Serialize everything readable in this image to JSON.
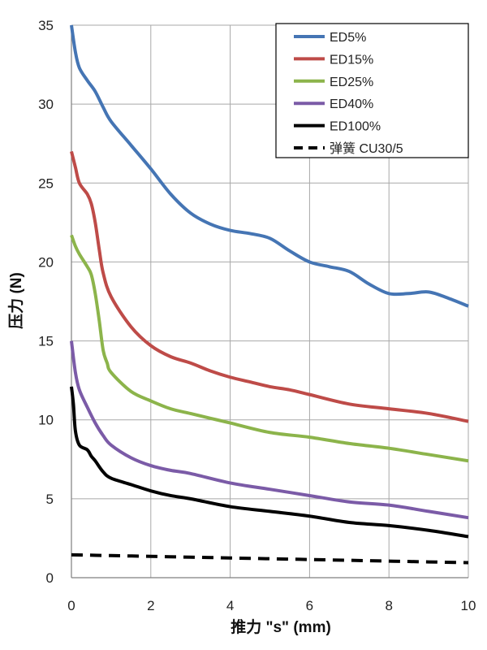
{
  "chart_data": {
    "type": "line",
    "title": "",
    "xlabel": "推力 \"s\" (mm)",
    "ylabel": "压力 (N)",
    "xlim": [
      0,
      10
    ],
    "ylim": [
      0,
      35
    ],
    "x_ticks": [
      "0",
      "2",
      "4",
      "6",
      "8",
      "10"
    ],
    "y_ticks": [
      "0",
      "5",
      "10",
      "15",
      "20",
      "25",
      "30",
      "35"
    ],
    "grid": "vertical",
    "legend_position": "top-right",
    "series": [
      {
        "name": "ED5%",
        "color": "#4575b4",
        "dash": "solid",
        "points": [
          [
            0,
            35
          ],
          [
            0.1,
            33.3
          ],
          [
            0.2,
            32.3
          ],
          [
            0.4,
            31.5
          ],
          [
            0.6,
            30.8
          ],
          [
            0.8,
            29.8
          ],
          [
            1.0,
            28.9
          ],
          [
            1.5,
            27.4
          ],
          [
            2.0,
            25.9
          ],
          [
            2.5,
            24.3
          ],
          [
            3.0,
            23.1
          ],
          [
            3.5,
            22.4
          ],
          [
            4.0,
            22.0
          ],
          [
            4.5,
            21.8
          ],
          [
            5.0,
            21.5
          ],
          [
            5.5,
            20.7
          ],
          [
            6.0,
            20.0
          ],
          [
            6.5,
            19.7
          ],
          [
            7.0,
            19.4
          ],
          [
            7.5,
            18.6
          ],
          [
            8.0,
            18.0
          ],
          [
            8.5,
            18.0
          ],
          [
            9.0,
            18.1
          ],
          [
            9.5,
            17.7
          ],
          [
            10.0,
            17.2
          ]
        ]
      },
      {
        "name": "ED15%",
        "color": "#be4b48",
        "dash": "solid",
        "points": [
          [
            0,
            27.0
          ],
          [
            0.1,
            26.0
          ],
          [
            0.2,
            25.0
          ],
          [
            0.4,
            24.3
          ],
          [
            0.5,
            23.7
          ],
          [
            0.6,
            22.5
          ],
          [
            0.7,
            20.8
          ],
          [
            0.8,
            19.3
          ],
          [
            1.0,
            17.8
          ],
          [
            1.5,
            15.9
          ],
          [
            2.0,
            14.7
          ],
          [
            2.5,
            14.0
          ],
          [
            3.0,
            13.6
          ],
          [
            3.5,
            13.1
          ],
          [
            4.0,
            12.7
          ],
          [
            4.5,
            12.4
          ],
          [
            5.0,
            12.1
          ],
          [
            5.5,
            11.9
          ],
          [
            6.0,
            11.6
          ],
          [
            7.0,
            11.0
          ],
          [
            8.0,
            10.7
          ],
          [
            9.0,
            10.4
          ],
          [
            10.0,
            9.9
          ]
        ]
      },
      {
        "name": "ED25%",
        "color": "#8cb44b",
        "dash": "solid",
        "points": [
          [
            0,
            21.7
          ],
          [
            0.1,
            21.0
          ],
          [
            0.2,
            20.5
          ],
          [
            0.4,
            19.7
          ],
          [
            0.5,
            19.2
          ],
          [
            0.6,
            18.0
          ],
          [
            0.7,
            16.3
          ],
          [
            0.8,
            14.4
          ],
          [
            0.9,
            13.6
          ],
          [
            1.0,
            13.0
          ],
          [
            1.5,
            11.8
          ],
          [
            2.0,
            11.2
          ],
          [
            2.5,
            10.7
          ],
          [
            3.0,
            10.4
          ],
          [
            3.5,
            10.1
          ],
          [
            4.0,
            9.8
          ],
          [
            5.0,
            9.2
          ],
          [
            6.0,
            8.9
          ],
          [
            7.0,
            8.5
          ],
          [
            8.0,
            8.2
          ],
          [
            9.0,
            7.8
          ],
          [
            10.0,
            7.4
          ]
        ]
      },
      {
        "name": "ED40%",
        "color": "#7b5ba7",
        "dash": "solid",
        "points": [
          [
            0,
            15.0
          ],
          [
            0.1,
            13.0
          ],
          [
            0.2,
            11.9
          ],
          [
            0.4,
            10.8
          ],
          [
            0.6,
            9.8
          ],
          [
            0.8,
            9.0
          ],
          [
            1.0,
            8.4
          ],
          [
            1.5,
            7.6
          ],
          [
            2.0,
            7.1
          ],
          [
            2.5,
            6.8
          ],
          [
            3.0,
            6.6
          ],
          [
            4.0,
            6.0
          ],
          [
            5.0,
            5.6
          ],
          [
            6.0,
            5.2
          ],
          [
            7.0,
            4.8
          ],
          [
            8.0,
            4.6
          ],
          [
            9.0,
            4.2
          ],
          [
            10.0,
            3.8
          ]
        ]
      },
      {
        "name": "ED100%",
        "color": "#000000",
        "dash": "solid",
        "points": [
          [
            0,
            12.1
          ],
          [
            0.05,
            11.0
          ],
          [
            0.1,
            9.3
          ],
          [
            0.2,
            8.4
          ],
          [
            0.4,
            8.1
          ],
          [
            0.5,
            7.7
          ],
          [
            0.6,
            7.4
          ],
          [
            0.8,
            6.7
          ],
          [
            1.0,
            6.3
          ],
          [
            1.5,
            5.9
          ],
          [
            2.0,
            5.5
          ],
          [
            2.5,
            5.2
          ],
          [
            3.0,
            5.0
          ],
          [
            4.0,
            4.5
          ],
          [
            5.0,
            4.2
          ],
          [
            6.0,
            3.9
          ],
          [
            7.0,
            3.5
          ],
          [
            8.0,
            3.3
          ],
          [
            9.0,
            3.0
          ],
          [
            10.0,
            2.6
          ]
        ]
      },
      {
        "name": "弹簧     CU30/5",
        "color": "#000000",
        "dash": "dashed",
        "points": [
          [
            0,
            1.45
          ],
          [
            1.0,
            1.4
          ],
          [
            2.0,
            1.35
          ],
          [
            3.0,
            1.3
          ],
          [
            4.0,
            1.25
          ],
          [
            5.0,
            1.2
          ],
          [
            6.0,
            1.15
          ],
          [
            7.0,
            1.1
          ],
          [
            8.0,
            1.05
          ],
          [
            9.0,
            1.0
          ],
          [
            10.0,
            0.95
          ]
        ]
      }
    ]
  }
}
